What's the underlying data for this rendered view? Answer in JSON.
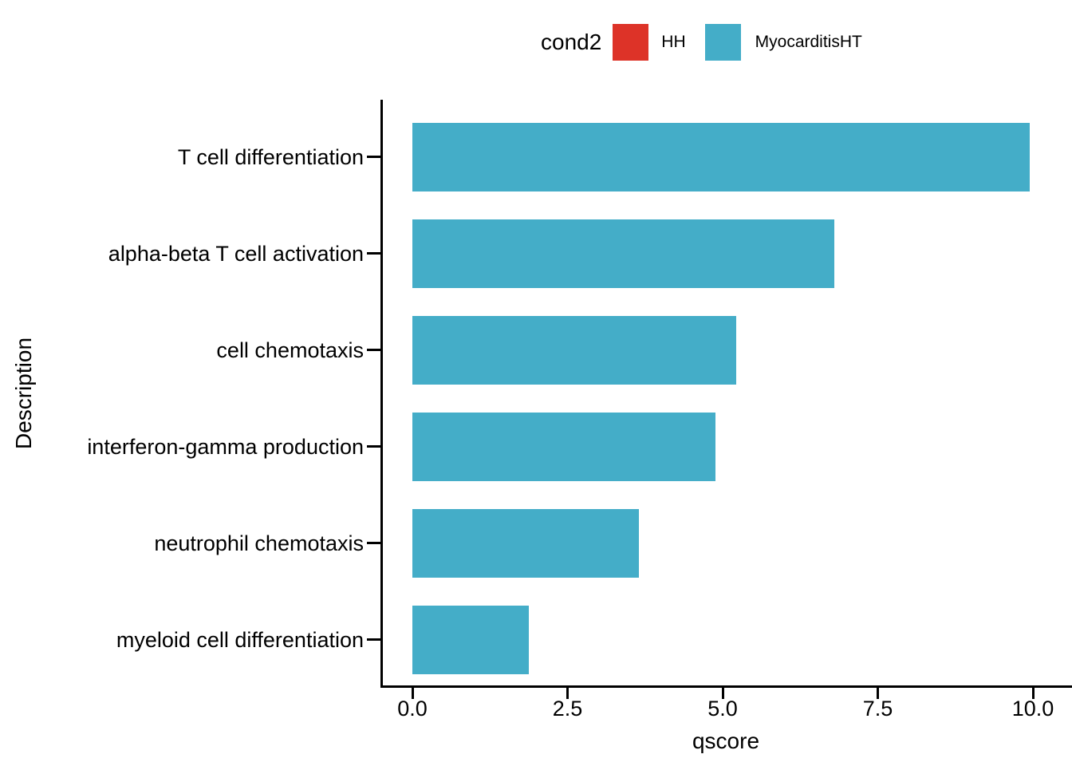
{
  "chart_data": {
    "type": "bar",
    "orientation": "horizontal",
    "title": "",
    "xlabel": "qscore",
    "ylabel": "Description",
    "xlim": [
      0,
      10.6
    ],
    "grid": false,
    "background": "#FFFFFF",
    "axis_color": "#000000",
    "x_ticks": [
      {
        "value": 0,
        "label": "0.0"
      },
      {
        "value": 2.5,
        "label": "2.5"
      },
      {
        "value": 5,
        "label": "5.0"
      },
      {
        "value": 7.5,
        "label": "7.5"
      },
      {
        "value": 10,
        "label": "10.0"
      }
    ],
    "rows": [
      {
        "category": "T cell differentiation",
        "value": 9.95,
        "group": "MyocarditisHT"
      },
      {
        "category": "alpha-beta T cell activation",
        "value": 6.8,
        "group": "MyocarditisHT"
      },
      {
        "category": "cell chemotaxis",
        "value": 5.22,
        "group": "MyocarditisHT"
      },
      {
        "category": "interferon-gamma production",
        "value": 4.88,
        "group": "MyocarditisHT"
      },
      {
        "category": "neutrophil chemotaxis",
        "value": 3.65,
        "group": "MyocarditisHT"
      },
      {
        "category": "myeloid cell differentiation",
        "value": 1.88,
        "group": "MyocarditisHT"
      }
    ],
    "legend": {
      "title": "cond2",
      "position": "top",
      "entries": [
        {
          "label": "HH",
          "color": "#DD3328"
        },
        {
          "label": "MyocarditisHT",
          "color": "#44ADC8"
        }
      ]
    }
  }
}
